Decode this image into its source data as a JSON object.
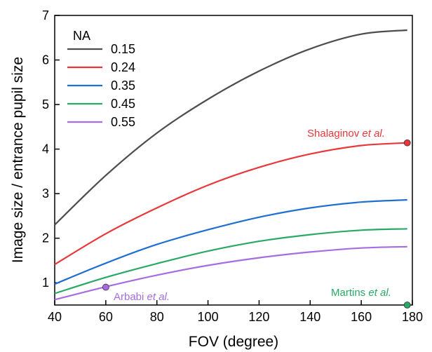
{
  "chart_data": {
    "type": "line",
    "xlabel": "FOV (degree)",
    "ylabel": "Image size / entrance pupil size",
    "xlim": [
      40,
      180
    ],
    "ylim": [
      0.5,
      7
    ],
    "xticks": [
      "40",
      "60",
      "80",
      "100",
      "120",
      "140",
      "160",
      "180"
    ],
    "yticks": [
      "1",
      "2",
      "3",
      "4",
      "5",
      "6",
      "7"
    ],
    "grid": false,
    "legend": {
      "title": "NA",
      "placement": "top-left"
    },
    "series": [
      {
        "name": "0.15",
        "color": "#4d4d4d",
        "x": [
          40,
          60,
          80,
          100,
          120,
          140,
          160,
          178
        ],
        "y": [
          2.3,
          3.41,
          4.36,
          5.12,
          5.75,
          6.25,
          6.58,
          6.67
        ]
      },
      {
        "name": "0.24",
        "color": "#e8383b",
        "x": [
          40,
          60,
          80,
          100,
          120,
          140,
          160,
          178
        ],
        "y": [
          1.41,
          2.1,
          2.68,
          3.19,
          3.59,
          3.89,
          4.08,
          4.14
        ]
      },
      {
        "name": "0.35",
        "color": "#1f6fd1",
        "x": [
          40,
          60,
          80,
          100,
          120,
          140,
          160,
          178
        ],
        "y": [
          0.97,
          1.44,
          1.86,
          2.19,
          2.47,
          2.68,
          2.81,
          2.86
        ]
      },
      {
        "name": "0.45",
        "color": "#2aa866",
        "x": [
          40,
          60,
          80,
          100,
          120,
          140,
          160,
          178
        ],
        "y": [
          0.76,
          1.12,
          1.43,
          1.71,
          1.93,
          2.08,
          2.18,
          2.21
        ]
      },
      {
        "name": "0.55",
        "color": "#a66de0",
        "x": [
          40,
          60,
          80,
          100,
          120,
          140,
          160,
          178
        ],
        "y": [
          0.62,
          0.91,
          1.17,
          1.39,
          1.56,
          1.69,
          1.78,
          1.81
        ]
      }
    ],
    "points": [
      {
        "x": 178,
        "y": 4.14,
        "color": "#e8383b"
      },
      {
        "x": 60,
        "y": 0.9,
        "color": "#a66de0"
      },
      {
        "x": 178,
        "y": 0.5,
        "color": "#2aa866"
      }
    ],
    "annotations": [
      {
        "name": "Shalaginov",
        "suffix": "et al.",
        "color": "#e8383b"
      },
      {
        "name": "Arbabi",
        "suffix": "et al.",
        "color": "#a66de0"
      },
      {
        "name": "Martins",
        "suffix": "et al.",
        "color": "#2aa866"
      }
    ]
  }
}
